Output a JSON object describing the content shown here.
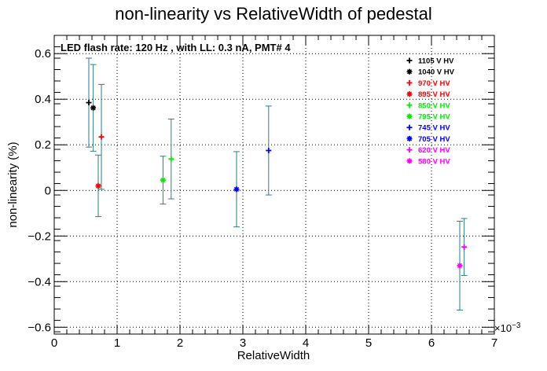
{
  "chart_data": {
    "type": "scatter",
    "title": "non-linearity vs RelativeWidth of pedestal",
    "annotation": "LED flash rate: 120 Hz , with LL: 0.3 nA, PMT# 4",
    "xlabel": "RelativeWidth",
    "ylabel": "non-linearity (%)",
    "x_multiplier_label": "×10",
    "x_multiplier_exp": "−3",
    "xlim": [
      0,
      0.007
    ],
    "ylim": [
      -0.63,
      0.68
    ],
    "x_ticks": [
      0,
      1,
      2,
      3,
      4,
      5,
      6,
      7
    ],
    "y_ticks": [
      -0.6,
      -0.4,
      -0.2,
      0,
      0.2,
      0.4,
      0.6
    ],
    "grid": true,
    "legend_position": "top-right",
    "error_bar_color": "#2a7f86",
    "series": [
      {
        "name": "1105 V HV",
        "color": "#000000",
        "marker": "plus",
        "x": 0.00055,
        "y": 0.385,
        "err": 0.195
      },
      {
        "name": "1040 V HV",
        "color": "#000000",
        "marker": "asterisk",
        "x": 0.00062,
        "y": 0.362,
        "err": 0.19
      },
      {
        "name": "970 V HV",
        "color": "#ff0000",
        "marker": "plus",
        "x": 0.00075,
        "y": 0.235,
        "err": 0.23
      },
      {
        "name": "895 V HV",
        "color": "#ff0000",
        "marker": "asterisk",
        "x": 0.0007,
        "y": 0.02,
        "err": 0.135
      },
      {
        "name": "850 V HV",
        "color": "#00ee00",
        "marker": "plus",
        "x": 0.00186,
        "y": 0.138,
        "err": 0.175
      },
      {
        "name": "795 V HV",
        "color": "#00ee00",
        "marker": "asterisk",
        "x": 0.00173,
        "y": 0.045,
        "err": 0.105
      },
      {
        "name": "745 V HV",
        "color": "#0000ff",
        "marker": "plus",
        "x": 0.00341,
        "y": 0.175,
        "err": 0.195
      },
      {
        "name": "705 V HV",
        "color": "#0000ff",
        "marker": "asterisk",
        "x": 0.0029,
        "y": 0.005,
        "err": 0.165
      },
      {
        "name": "620 V HV",
        "color": "#ff00ff",
        "marker": "plus",
        "x": 0.00652,
        "y": -0.248,
        "err": 0.125
      },
      {
        "name": "580 V HV",
        "color": "#ff00ff",
        "marker": "asterisk",
        "x": 0.00645,
        "y": -0.33,
        "err": 0.195
      }
    ]
  }
}
